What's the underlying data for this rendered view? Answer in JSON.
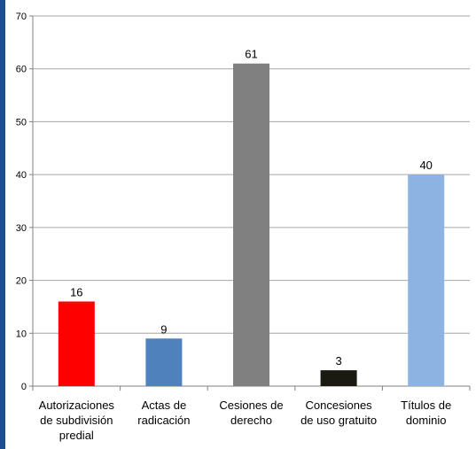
{
  "chart_data": {
    "type": "bar",
    "categories": [
      [
        "Autorizaciones",
        "de subdivisión",
        "predial"
      ],
      [
        "Actas de",
        "radicación"
      ],
      [
        "Cesiones de",
        "derecho"
      ],
      [
        "Concesiones",
        "de uso gratuito"
      ],
      [
        "Títulos de",
        "dominio"
      ]
    ],
    "values": [
      16,
      9,
      61,
      3,
      40
    ],
    "data_labels": [
      "16",
      "9",
      "61",
      "3",
      "40"
    ],
    "colors": [
      "#ff0000",
      "#4f81bd",
      "#808080",
      "#1a1a12",
      "#8db3e2"
    ],
    "ylim": [
      0,
      70
    ],
    "yticks": [
      0,
      10,
      20,
      30,
      40,
      50,
      60,
      70
    ],
    "grid": true,
    "grid_color": "#a6a6a6",
    "title": "",
    "xlabel": "",
    "ylabel": ""
  },
  "frame": {
    "border_color": "#1f4e8c"
  }
}
